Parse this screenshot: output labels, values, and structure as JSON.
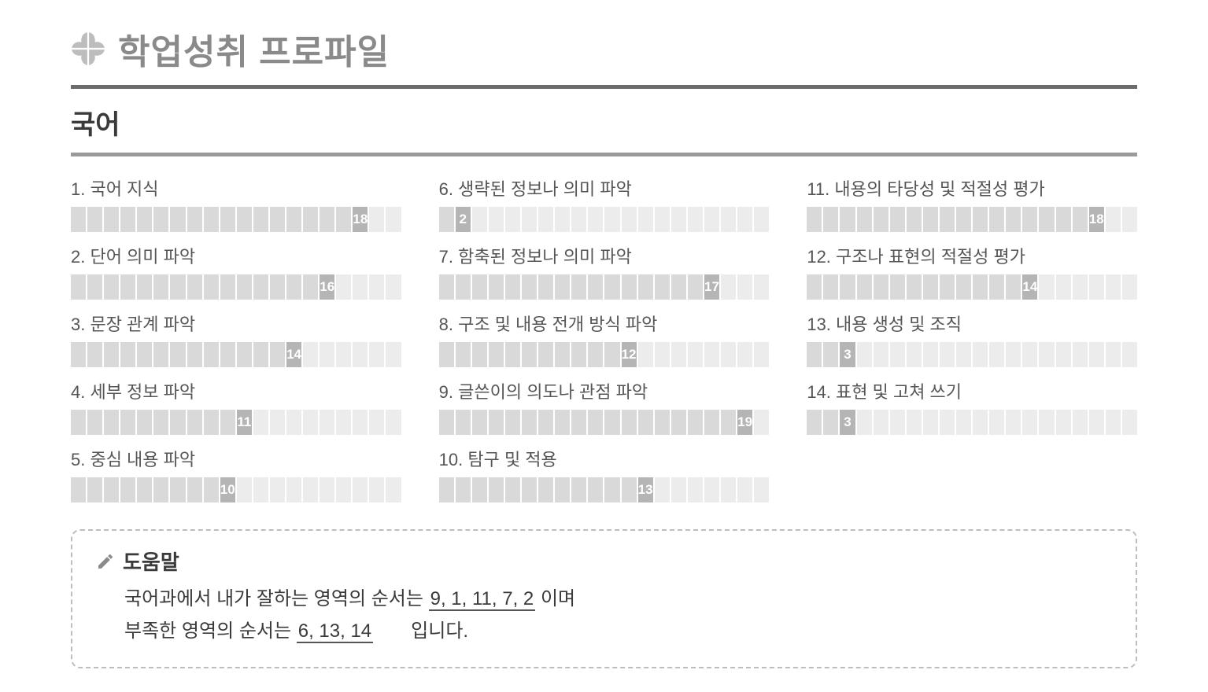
{
  "page": {
    "title": "학업성취 프로파일",
    "subject": "국어",
    "segments_total": 20,
    "colors": {
      "title": "#8a8a8a",
      "subject": "#3a3a3a",
      "label": "#555555",
      "seg_empty": "#ececec",
      "seg_filled": "#d9d9d9",
      "seg_last": "#b5b5b5",
      "seg_text": "#ffffff",
      "rule_thick": "#6b6b6b",
      "rule_thin": "#9a9a9a",
      "help_border": "#bdbdbd"
    }
  },
  "items": [
    {
      "num": "1",
      "label": "국어 지식",
      "value": 18
    },
    {
      "num": "2",
      "label": "단어 의미 파악",
      "value": 16
    },
    {
      "num": "3",
      "label": "문장 관계 파악",
      "value": 14
    },
    {
      "num": "4",
      "label": "세부 정보 파악",
      "value": 11
    },
    {
      "num": "5",
      "label": "중심 내용 파악",
      "value": 10
    },
    {
      "num": "6",
      "label": "생략된 정보나 의미 파악",
      "value": 2
    },
    {
      "num": "7",
      "label": "함축된 정보나 의미 파악",
      "value": 17
    },
    {
      "num": "8",
      "label": "구조 및 내용 전개 방식 파악",
      "value": 12
    },
    {
      "num": "9",
      "label": "글쓴이의 의도나 관점 파악",
      "value": 19
    },
    {
      "num": "10",
      "label": "탐구 및 적용",
      "value": 13
    },
    {
      "num": "11",
      "label": "내용의 타당성 및 적절성 평가",
      "value": 18
    },
    {
      "num": "12",
      "label": "구조나 표현의 적절성 평가",
      "value": 14
    },
    {
      "num": "13",
      "label": "내용 생성 및 조직",
      "value": 3
    },
    {
      "num": "14",
      "label": "표현 및 고쳐 쓰기",
      "value": 3
    }
  ],
  "help": {
    "title": "도움말",
    "line1_pre": "국어과에서 내가 잘하는 영역의 순서는 ",
    "line1_val": "9, 1, 11, 7, 2",
    "line1_post": " 이며",
    "line2_pre": "부족한 영역의 순서는 ",
    "line2_val": "6, 13, 14",
    "line2_post": "  입니다."
  }
}
